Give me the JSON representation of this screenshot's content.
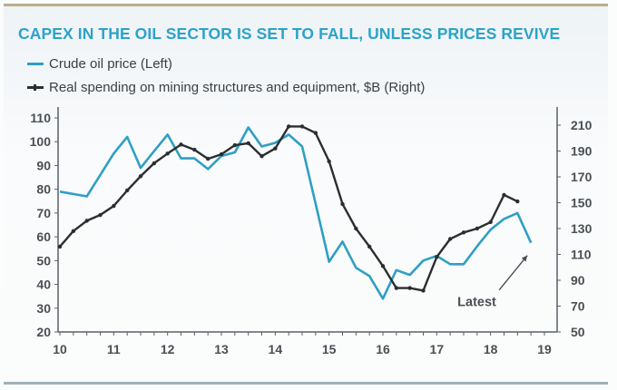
{
  "chart_data": {
    "type": "line",
    "title": "CAPEX IN THE OIL SECTOR IS SET TO FALL, UNLESS PRICES REVIVE",
    "xlabel": "",
    "ylabel_left": "",
    "ylabel_right": "",
    "x_ticks": [
      "10",
      "11",
      "12",
      "13",
      "14",
      "15",
      "16",
      "17",
      "18",
      "19"
    ],
    "xlim": [
      10,
      19
    ],
    "ylim_left": [
      20,
      110
    ],
    "y_ticks_left": [
      "110",
      "100",
      "90",
      "80",
      "70",
      "60",
      "50",
      "40",
      "30",
      "20"
    ],
    "ylim_right": [
      50,
      210
    ],
    "y_ticks_right": [
      "210",
      "190",
      "170",
      "150",
      "130",
      "110",
      "90",
      "70",
      "50"
    ],
    "grid": false,
    "legend_position": "top-left",
    "series": [
      {
        "name": "Crude oil price (Left)",
        "axis": "left",
        "color": "#2f9fc4",
        "markers": false,
        "x": [
          10.0,
          10.25,
          10.5,
          10.75,
          11.0,
          11.25,
          11.5,
          11.75,
          12.0,
          12.25,
          12.5,
          12.75,
          13.0,
          13.25,
          13.5,
          13.75,
          14.0,
          14.25,
          14.5,
          14.75,
          15.0,
          15.25,
          15.5,
          15.75,
          16.0,
          16.25,
          16.5,
          16.75,
          17.0,
          17.25,
          17.5,
          17.75,
          18.0,
          18.25,
          18.5,
          18.75
        ],
        "values": [
          79,
          78,
          77,
          86,
          95,
          102,
          89,
          96,
          103,
          93,
          93,
          88.5,
          94,
          95.5,
          106,
          98,
          99.5,
          103,
          98,
          74,
          49.5,
          58,
          47,
          43.5,
          34,
          46,
          44,
          50,
          52,
          48.5,
          48.5,
          56,
          63,
          67.5,
          70,
          57.5
        ]
      },
      {
        "name": "Real spending on mining structures and equipment, $B (Right)",
        "axis": "right",
        "color": "#2b2e30",
        "markers": true,
        "x": [
          10.0,
          10.25,
          10.5,
          10.75,
          11.0,
          11.25,
          11.5,
          11.75,
          12.0,
          12.25,
          12.5,
          12.75,
          13.0,
          13.25,
          13.5,
          13.75,
          14.0,
          14.25,
          14.5,
          14.75,
          15.0,
          15.25,
          15.5,
          15.75,
          16.0,
          16.25,
          16.5,
          16.75,
          17.0,
          17.25,
          17.5,
          17.75,
          18.0,
          18.25,
          18.5
        ],
        "values": [
          116,
          128,
          136,
          140.5,
          147.5,
          159.5,
          170.5,
          180.5,
          188,
          195,
          191,
          184,
          187.5,
          194.5,
          196,
          186,
          192,
          209,
          209,
          204,
          182,
          149,
          130,
          116,
          101,
          84,
          84,
          82,
          108,
          122,
          127,
          130,
          135,
          156,
          151
        ]
      }
    ],
    "annotations": [
      {
        "text": "Latest",
        "arrow_to": {
          "series": "Crude oil price (Left)",
          "x": 18.75
        }
      }
    ]
  },
  "legend": {
    "oil_label": "Crude oil price (Left)",
    "spend_label": "Real spending on mining structures and equipment, $B (Right)"
  }
}
